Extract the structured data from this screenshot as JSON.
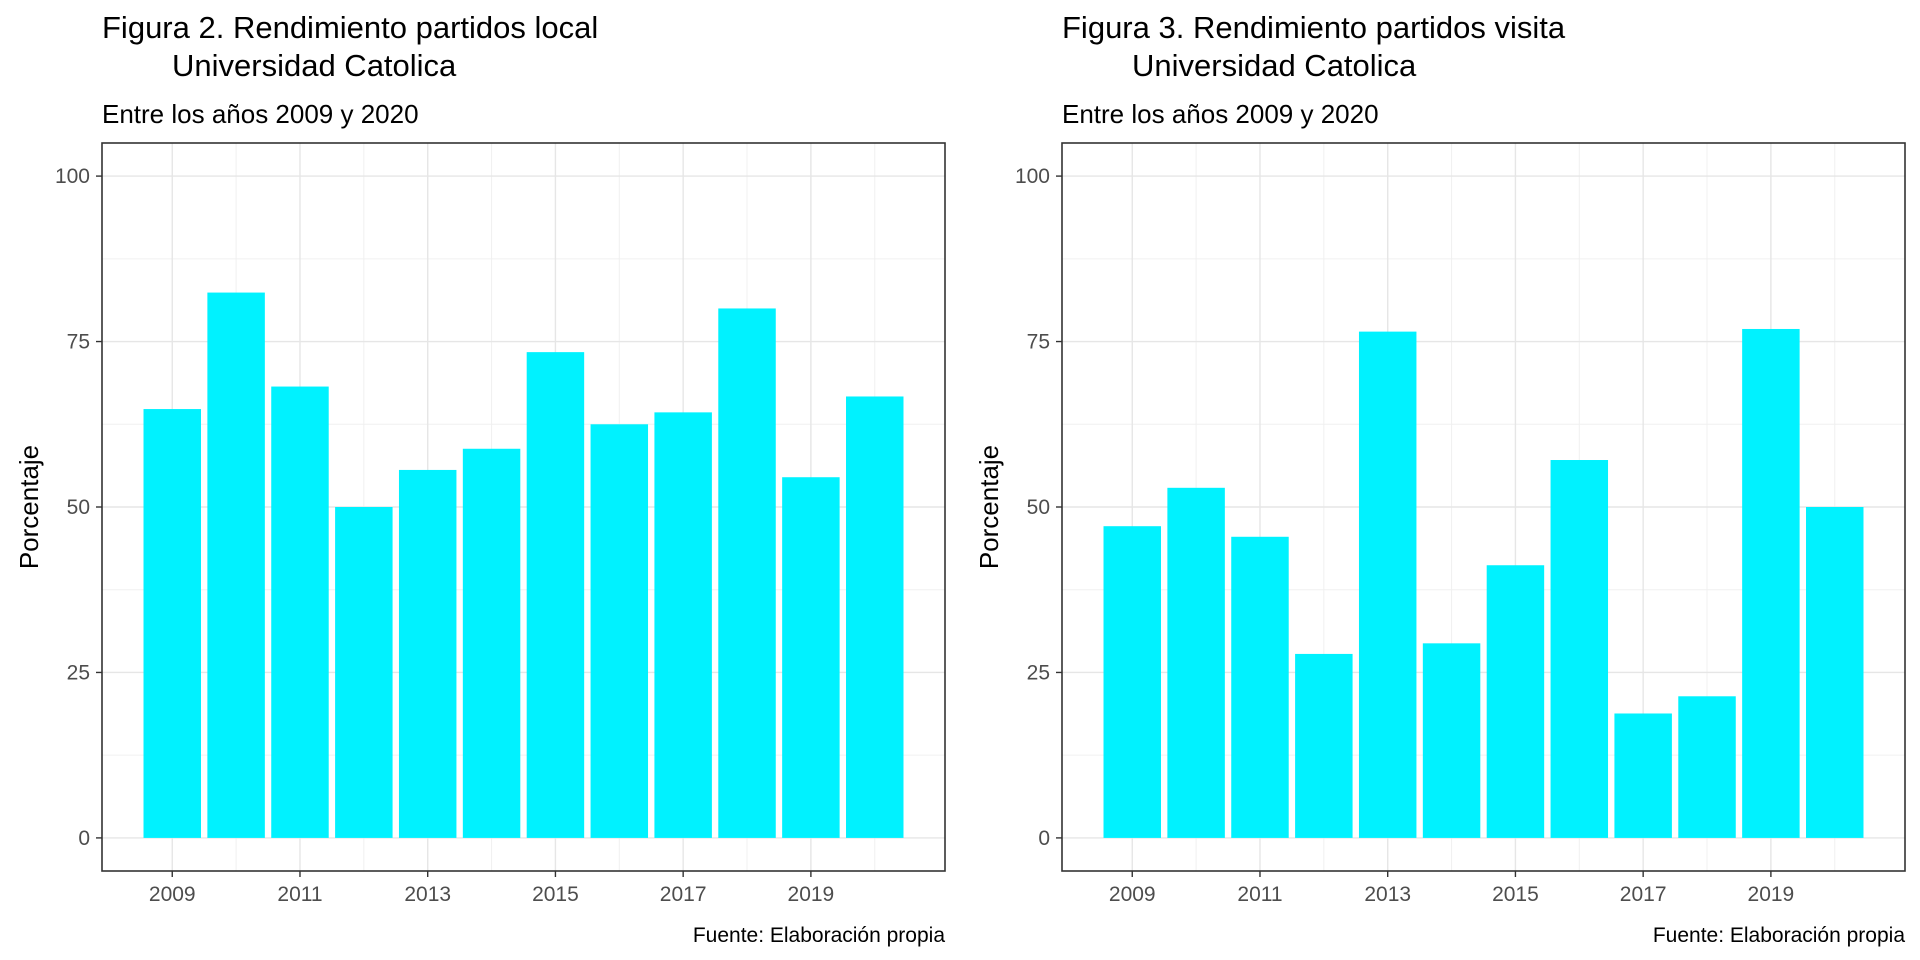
{
  "chart_data": [
    {
      "type": "bar",
      "title_line1": "Figura 2. Rendimiento partidos local",
      "title_line2": "Universidad Catolica",
      "subtitle": "Entre los años 2009 y 2020",
      "xlabel": "",
      "ylabel": "Porcentaje",
      "caption": "Fuente: Elaboración propia",
      "x": [
        2009,
        2010,
        2011,
        2012,
        2013,
        2014,
        2015,
        2016,
        2017,
        2018,
        2019,
        2020
      ],
      "values": [
        64.8,
        82.4,
        68.2,
        50.0,
        55.6,
        58.8,
        73.4,
        62.5,
        64.3,
        80.0,
        54.5,
        66.7
      ],
      "x_ticks": [
        "2009",
        "2011",
        "2013",
        "2015",
        "2017",
        "2019"
      ],
      "y_ticks": [
        "0",
        "25",
        "50",
        "75",
        "100"
      ],
      "ylim": [
        -5,
        105
      ],
      "bar_color": "#00f2ff",
      "grid": true
    },
    {
      "type": "bar",
      "title_line1": "Figura 3. Rendimiento partidos visita",
      "title_line2": "Universidad Catolica",
      "subtitle": "Entre los años 2009 y 2020",
      "xlabel": "",
      "ylabel": "Porcentaje",
      "caption": "Fuente: Elaboración propia",
      "x": [
        2009,
        2010,
        2011,
        2012,
        2013,
        2014,
        2015,
        2016,
        2017,
        2018,
        2019,
        2020
      ],
      "values": [
        47.1,
        52.9,
        45.5,
        27.8,
        76.5,
        29.4,
        41.2,
        57.1,
        18.8,
        21.4,
        76.9,
        50.0
      ],
      "x_ticks": [
        "2009",
        "2011",
        "2013",
        "2015",
        "2017",
        "2019"
      ],
      "y_ticks": [
        "0",
        "25",
        "50",
        "75",
        "100"
      ],
      "ylim": [
        -5,
        105
      ],
      "bar_color": "#00f2ff",
      "grid": true
    }
  ]
}
